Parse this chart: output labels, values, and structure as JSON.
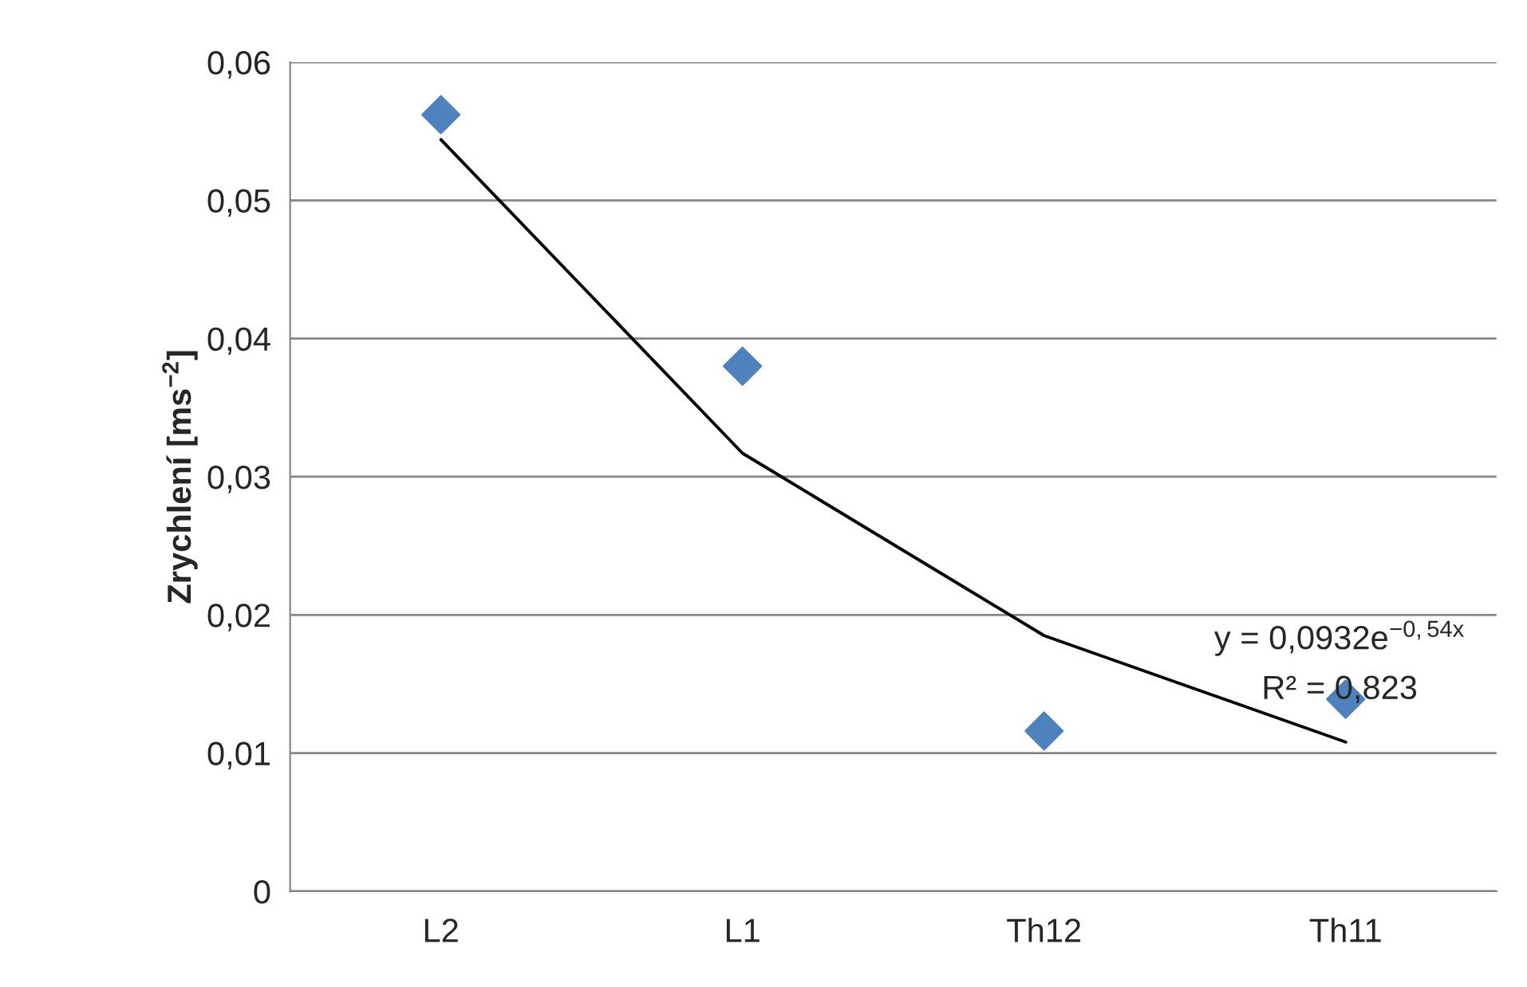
{
  "chart_data": {
    "type": "scatter",
    "ylabel": "Zrychlení [ms$^{−2}$]",
    "categories": [
      "L2",
      "L1",
      "Th12",
      "Th11"
    ],
    "series": [
      {
        "color": "#4f81bd",
        "marker": "diamond",
        "values": [
          0.0562,
          0.038,
          0.0116,
          0.0139
        ]
      },
      {
        "type": "line",
        "color": "#000000",
        "marker": "none",
        "line_style": "solid",
        "values": [
          0.0544,
          0.0317,
          0.0185,
          0.0108
        ]
      }
    ],
    "ylim": [
      0,
      0.06
    ],
    "yticks": [
      {
        "value": 0,
        "label": "0"
      },
      {
        "value": 0.01,
        "label": "0,01"
      },
      {
        "value": 0.02,
        "label": "0,02"
      },
      {
        "value": 0.03,
        "label": "0,03"
      },
      {
        "value": 0.04,
        "label": "0,04"
      },
      {
        "value": 0.05,
        "label": "0,05"
      },
      {
        "value": 0.06,
        "label": "0,06"
      }
    ],
    "grid": "y",
    "annotations": [
      "y = 0,0932e$^{−0,54x}$",
      "R² = 0,823"
    ]
  }
}
